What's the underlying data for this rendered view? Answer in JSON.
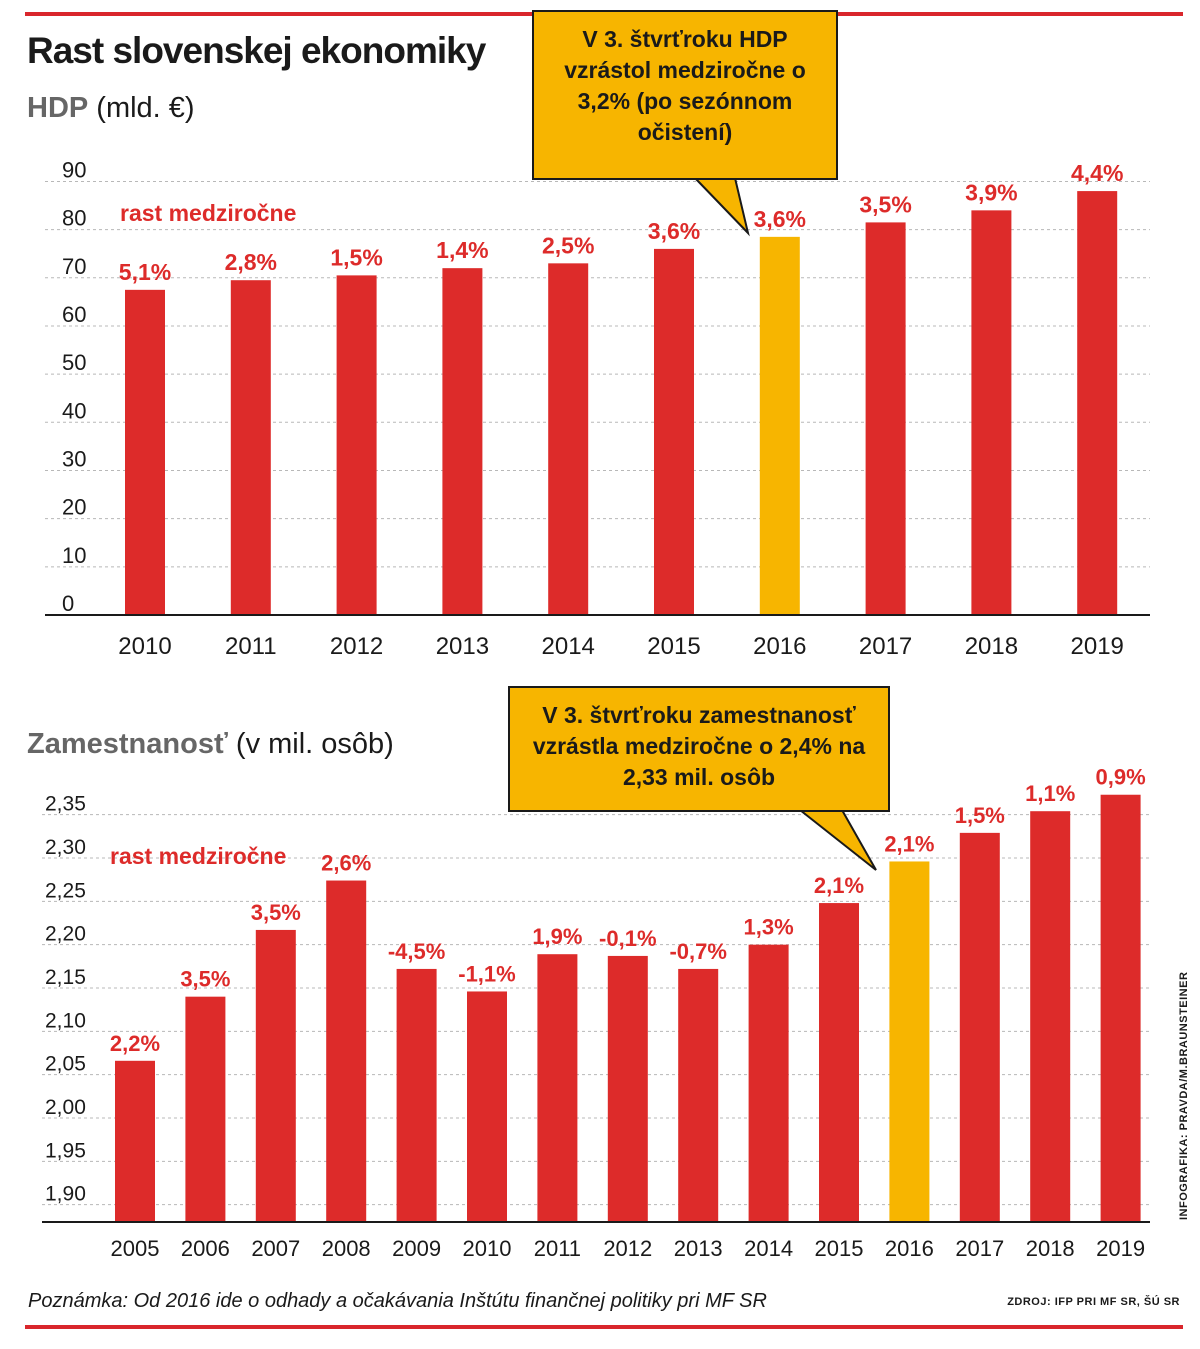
{
  "title": "Rast slovenskej ekonomiky",
  "footnote": "Poznámka: Od 2016 ide o odhady a očakávania Inštútu finančnej politiky pri MF SR",
  "source": "ZDROJ: IFP PRI MF SR, ŠÚ SR",
  "credit": "INFOGRAFIKA: PRAVDA/M.BRAUNSTEINER",
  "colors": {
    "bar": "#dd2b2a",
    "highlight": "#f7b500",
    "label": "#dd2b2a",
    "grid": "#b8b8b8",
    "axis": "#1a1a1a"
  },
  "chart_data": [
    {
      "type": "bar",
      "title": "HDP",
      "unit": "(mld. €)",
      "series_label": "rast medziročne",
      "categories": [
        "2010",
        "2011",
        "2012",
        "2013",
        "2014",
        "2015",
        "2016",
        "2017",
        "2018",
        "2019"
      ],
      "values": [
        67.5,
        69.5,
        70.5,
        72,
        73,
        76,
        78.5,
        81.5,
        84,
        88
      ],
      "growth_labels": [
        "5,1%",
        "2,8%",
        "1,5%",
        "1,4%",
        "2,5%",
        "3,6%",
        "3,6%",
        "3,5%",
        "3,9%",
        "4,4%"
      ],
      "highlight_index": 6,
      "yticks": [
        0,
        10,
        20,
        30,
        40,
        50,
        60,
        70,
        80,
        90
      ],
      "ytick_labels": [
        "0",
        "10",
        "20",
        "30",
        "40",
        "50",
        "60",
        "70",
        "80",
        "90"
      ],
      "ylim": [
        0,
        93
      ],
      "grid": true,
      "callout": "V 3. štvrťroku HDP vzrástol medziročne o 3,2% (po sezónnom očistení)"
    },
    {
      "type": "bar",
      "title": "Zamestnanosť",
      "unit": "(v mil. osôb)",
      "series_label": "rast medziročne",
      "categories": [
        "2005",
        "2006",
        "2007",
        "2008",
        "2009",
        "2010",
        "2011",
        "2012",
        "2013",
        "2014",
        "2015",
        "2016",
        "2017",
        "2018",
        "2019"
      ],
      "values": [
        2.066,
        2.14,
        2.217,
        2.274,
        2.172,
        2.146,
        2.189,
        2.187,
        2.172,
        2.2,
        2.248,
        2.296,
        2.329,
        2.354,
        2.373
      ],
      "growth_labels": [
        "2,2%",
        "3,5%",
        "3,5%",
        "2,6%",
        "-4,5%",
        "-1,1%",
        "1,9%",
        "-0,1%",
        "-0,7%",
        "1,3%",
        "2,1%",
        "2,1%",
        "1,5%",
        "1,1%",
        "0,9%"
      ],
      "highlight_index": 11,
      "yticks": [
        1.9,
        1.95,
        2.0,
        2.05,
        2.1,
        2.15,
        2.2,
        2.25,
        2.3,
        2.35
      ],
      "ytick_labels": [
        "1,90",
        "1,95",
        "2,00",
        "2,05",
        "2,10",
        "2,15",
        "2,20",
        "2,25",
        "2,30",
        "2,35"
      ],
      "ylim": [
        1.88,
        2.39
      ],
      "grid": true,
      "callout": "V 3. štvrťroku zamestnanosť vzrástla medziročne o 2,4% na 2,33 mil. osôb"
    }
  ]
}
